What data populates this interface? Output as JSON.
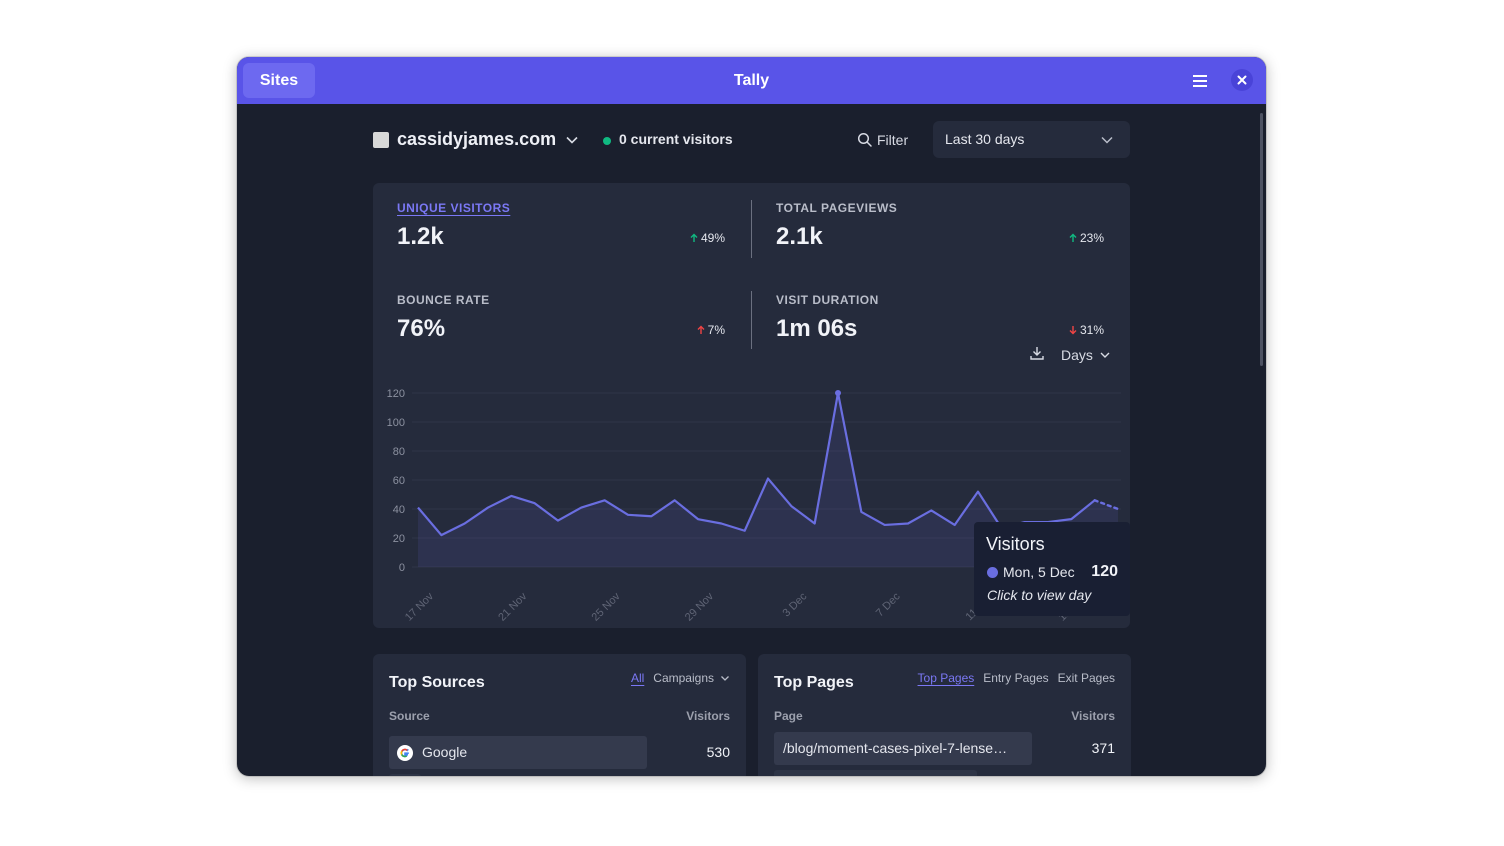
{
  "window": {
    "title": "Tally",
    "sites_label": "Sites",
    "menu_icon": "hamburger-menu-icon",
    "close_icon": "close-icon",
    "accent": "#5954e8"
  },
  "header": {
    "site_name": "cassidyjames.com",
    "live_text": "0 current visitors",
    "live_color": "#10b981",
    "filter_label": "Filter",
    "date_range": "Last 30 days"
  },
  "stats": [
    {
      "label": "UNIQUE VISITORS",
      "value": "1.2k",
      "change": "49%",
      "direction": "up",
      "active": true
    },
    {
      "label": "TOTAL PAGEVIEWS",
      "value": "2.1k",
      "change": "23%",
      "direction": "up",
      "active": false
    },
    {
      "label": "BOUNCE RATE",
      "value": "76%",
      "change": "7%",
      "direction": "up-bad",
      "active": false
    },
    {
      "label": "VISIT DURATION",
      "value": "1m 06s",
      "change": "31%",
      "direction": "down",
      "active": false
    }
  ],
  "interval_label": "Days",
  "chart_data": {
    "type": "area",
    "title": "",
    "xlabel": "",
    "ylabel": "",
    "ylim": [
      0,
      120
    ],
    "yticks": [
      0,
      20,
      40,
      60,
      80,
      100,
      120
    ],
    "xtick_labels": [
      "17 Nov",
      "21 Nov",
      "25 Nov",
      "29 Nov",
      "3 Dec",
      "7 Dec",
      "11 Dec",
      "15 Dec"
    ],
    "x": [
      "17 Nov",
      "18 Nov",
      "19 Nov",
      "20 Nov",
      "21 Nov",
      "22 Nov",
      "23 Nov",
      "24 Nov",
      "25 Nov",
      "26 Nov",
      "27 Nov",
      "28 Nov",
      "29 Nov",
      "30 Nov",
      "1 Dec",
      "2 Dec",
      "3 Dec",
      "4 Dec",
      "5 Dec",
      "6 Dec",
      "7 Dec",
      "8 Dec",
      "9 Dec",
      "10 Dec",
      "11 Dec",
      "12 Dec",
      "13 Dec",
      "14 Dec",
      "15 Dec",
      "16 Dec",
      "17 Dec"
    ],
    "series": [
      {
        "values": [
          41,
          22,
          30,
          41,
          49,
          44,
          32,
          41,
          46,
          36,
          35,
          46,
          33,
          30,
          25,
          61,
          42,
          30,
          120,
          38,
          29,
          30,
          39,
          29,
          52,
          27,
          31,
          31,
          33,
          46,
          40
        ],
        "color": "#6a6ee0",
        "dashed_last_segment": true
      }
    ],
    "grid": true
  },
  "tooltip": {
    "title": "Visitors",
    "date": "Mon, 5 Dec",
    "value": "120",
    "hint": "Click to view day"
  },
  "top_sources": {
    "title": "Top Sources",
    "tabs": [
      "All",
      "Campaigns"
    ],
    "columns": [
      "Source",
      "Visitors"
    ],
    "rows": [
      {
        "label": "Google",
        "value": "530",
        "fraction": 0.7,
        "icon": "google-icon"
      }
    ]
  },
  "top_pages": {
    "title": "Top Pages",
    "tabs": [
      "Top Pages",
      "Entry Pages",
      "Exit Pages"
    ],
    "columns": [
      "Page",
      "Visitors"
    ],
    "rows": [
      {
        "label": "/blog/moment-cases-pixel-7-lense…",
        "value": "371",
        "fraction": 0.7
      }
    ]
  }
}
